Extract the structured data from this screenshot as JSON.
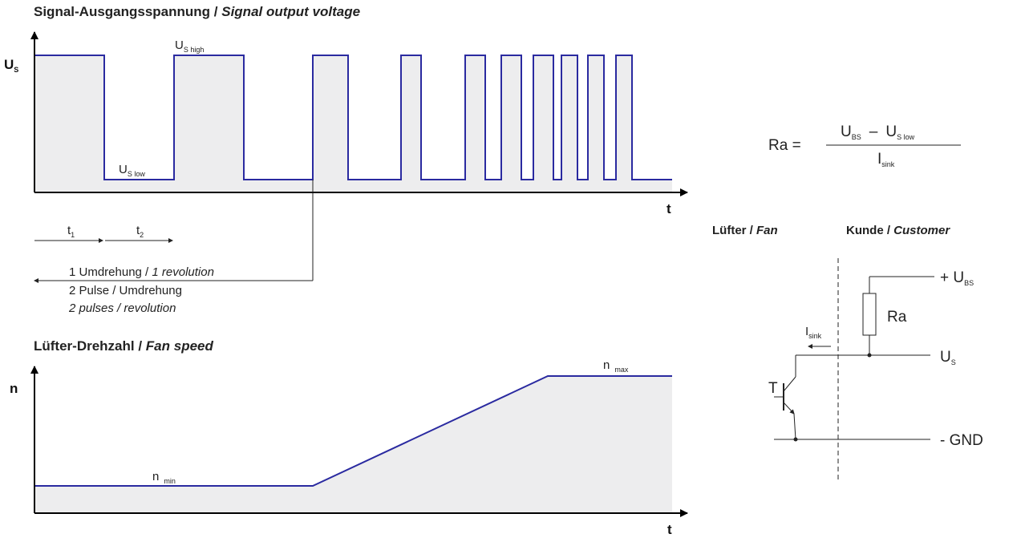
{
  "signal_chart": {
    "title_de": "Signal-Ausgangsspannung / ",
    "title_en": "Signal output voltage",
    "y_axis_label": "U",
    "y_axis_sub": "S",
    "x_axis_label": "t",
    "high_label": "U",
    "high_sub": "S high",
    "low_label": "U",
    "low_sub": "S low",
    "t1_label": "t",
    "t1_sub": "1",
    "t2_label": "t",
    "t2_sub": "2",
    "revolution_de": "1 Umdrehung / ",
    "revolution_en": "1 revolution",
    "pulses_de": "2 Pulse / Umdrehung",
    "pulses_en": "2 pulses / revolution"
  },
  "speed_chart": {
    "title_de": "Lüfter-Drehzahl / ",
    "title_en": "Fan speed",
    "y_axis_label": "n",
    "x_axis_label": "t",
    "min_label": "n",
    "min_sub": "min",
    "max_label": "n",
    "max_sub": "max"
  },
  "formula": {
    "lhs": "Ra =",
    "num_a": "U",
    "num_a_sub": "BS",
    "minus": "–",
    "num_b": "U",
    "num_b_sub": "S low",
    "den": "I",
    "den_sub": "sink"
  },
  "circuit": {
    "fan_de": "Lüfter / ",
    "fan_en": "Fan",
    "customer_de": "Kunde / ",
    "customer_en": "Customer",
    "supply_label": "+ U",
    "supply_sub": "BS",
    "resistor_label": "Ra",
    "signal_label": "U",
    "signal_sub": "S",
    "gnd_label": "- GND",
    "transistor_label": "T",
    "current_label": "I",
    "current_sub": "sink"
  },
  "colors": {
    "signal_line": "#2a2aa0",
    "fill": "#ededee"
  }
}
